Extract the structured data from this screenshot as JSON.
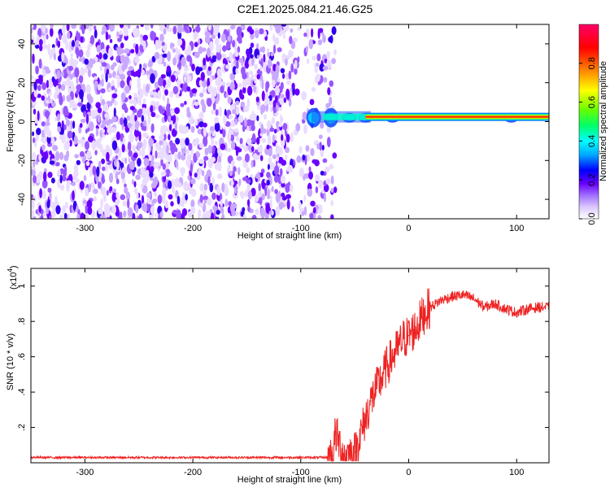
{
  "title": "C2E1.2025.084.21.46.G25",
  "chart_data": [
    {
      "type": "heatmap",
      "xlabel": "Height of straight line (km)",
      "ylabel": "Frequency (Hz)",
      "xlim": [
        -350,
        130
      ],
      "ylim": [
        -50,
        50
      ],
      "xticks": [
        -300,
        -200,
        -100,
        0,
        100
      ],
      "yticks": [
        -40,
        -20,
        0,
        20,
        40
      ],
      "colorbar": {
        "label": "Normalized spectral amplitude",
        "range": [
          0,
          1
        ],
        "ticks": [
          0.0,
          0.2,
          0.4,
          0.6,
          0.8
        ],
        "colors": [
          "#ffffff",
          "#dcc8ff",
          "#a070ff",
          "#6a00ff",
          "#0000ff",
          "#00aaff",
          "#00ffff",
          "#00ff66",
          "#66ff00",
          "#ffff00",
          "#ff8800",
          "#ff0000",
          "#ff0066"
        ]
      },
      "features": {
        "noise_region_x": [
          -350,
          -68
        ],
        "signal_line_hz": 2,
        "signal_onset_x": -90,
        "signal_blobs_x": [
          -88,
          -72,
          -55,
          -40,
          -15,
          95
        ]
      },
      "grid": false
    },
    {
      "type": "line",
      "xlabel": "Height of straight line (km)",
      "ylabel": "SNR (10 * v/v)",
      "multiplier_label": "(x10",
      "multiplier_exp": "4",
      "xlim": [
        -350,
        130
      ],
      "ylim": [
        0,
        1.1
      ],
      "xticks": [
        -300,
        -200,
        -100,
        0,
        100
      ],
      "yticks": [
        0.2,
        0.4,
        0.6,
        0.8,
        1.0
      ],
      "color": "#ee2222",
      "series": [
        {
          "x": [
            -350,
            -300,
            -250,
            -200,
            -150,
            -100,
            -75,
            -70,
            -68,
            -60,
            -50,
            -45,
            -40,
            -35,
            -30,
            -25,
            -20,
            -15,
            -10,
            -5,
            0,
            5,
            10,
            15,
            20,
            25,
            30,
            40,
            50,
            60,
            70,
            80,
            90,
            100,
            110,
            120,
            130
          ],
          "values": [
            0.03,
            0.03,
            0.03,
            0.03,
            0.03,
            0.03,
            0.03,
            0.04,
            0.17,
            0.04,
            0.06,
            0.15,
            0.25,
            0.35,
            0.42,
            0.48,
            0.55,
            0.6,
            0.65,
            0.7,
            0.72,
            0.75,
            0.8,
            0.85,
            0.88,
            0.9,
            0.92,
            0.94,
            0.95,
            0.93,
            0.88,
            0.9,
            0.87,
            0.85,
            0.87,
            0.88,
            0.88
          ]
        }
      ],
      "grid": false
    }
  ]
}
